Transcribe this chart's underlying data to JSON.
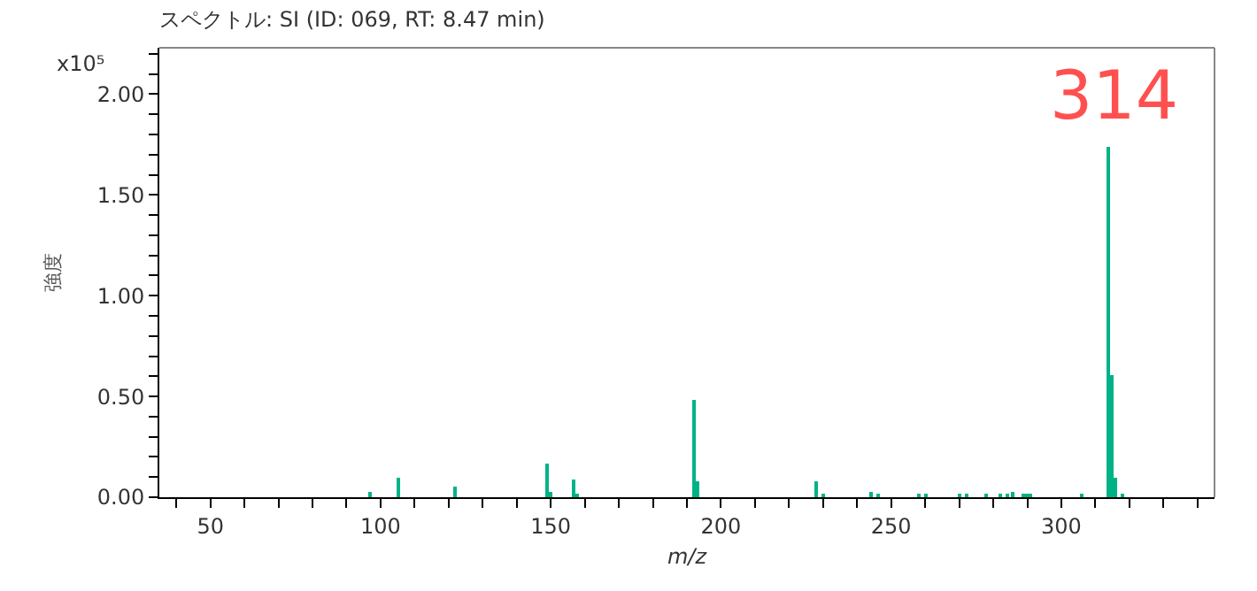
{
  "chart_data": {
    "type": "bar",
    "title": "スペクトル: SI (ID: 069, RT: 8.47 min)",
    "xlabel": "m/z",
    "ylabel": "強度",
    "annotations": [
      "x10⁵",
      "314"
    ],
    "x": [
      97,
      105,
      122,
      149,
      150,
      157,
      158,
      192,
      193,
      228,
      230,
      244,
      246,
      258,
      260,
      270,
      272,
      278,
      282,
      284,
      286,
      289,
      290,
      291,
      306,
      314,
      315,
      316,
      318
    ],
    "values": [
      0.03,
      0.1,
      0.05,
      0.17,
      0.03,
      0.09,
      0.02,
      0.48,
      0.08,
      0.08,
      0.02,
      0.03,
      0.02,
      0.02,
      0.01,
      0.01,
      0.01,
      0.01,
      0.01,
      0.01,
      0.03,
      0.01,
      0.02,
      0.01,
      0.01,
      1.74,
      0.61,
      0.1,
      0.01
    ],
    "color": "#00b386",
    "xlim": [
      35,
      345
    ],
    "ylim": [
      0,
      2.23
    ],
    "xticks": [
      {
        "value": 40,
        "label": null
      },
      50,
      {
        "value": 60,
        "label": null
      },
      {
        "value": 70,
        "label": null
      },
      {
        "value": 80,
        "label": null
      },
      {
        "value": 90,
        "label": null
      },
      100,
      {
        "value": 110,
        "label": null
      },
      {
        "value": 120,
        "label": null
      },
      {
        "value": 130,
        "label": null
      },
      {
        "value": 140,
        "label": null
      },
      150,
      {
        "value": 160,
        "label": null
      },
      {
        "value": 170,
        "label": null
      },
      {
        "value": 180,
        "label": null
      },
      {
        "value": 190,
        "label": null
      },
      200,
      {
        "value": 210,
        "label": null
      },
      {
        "value": 220,
        "label": null
      },
      {
        "value": 230,
        "label": null
      },
      {
        "value": 240,
        "label": null
      },
      250,
      {
        "value": 260,
        "label": null
      },
      {
        "value": 270,
        "label": null
      },
      {
        "value": 280,
        "label": null
      },
      {
        "value": 290,
        "label": null
      },
      300,
      {
        "value": 310,
        "label": null
      },
      {
        "value": 320,
        "label": null
      },
      {
        "value": 330,
        "label": null
      },
      {
        "value": 340,
        "label": null
      }
    ],
    "yticks": [
      {
        "value": 0,
        "label": "0.00"
      },
      {
        "value": 0.1,
        "label": null
      },
      {
        "value": 0.2,
        "label": null
      },
      {
        "value": 0.3,
        "label": null
      },
      {
        "value": 0.4,
        "label": null
      },
      {
        "value": 0.5,
        "label": "0.50"
      },
      {
        "value": 0.6,
        "label": null
      },
      {
        "value": 0.7,
        "label": null
      },
      {
        "value": 0.8,
        "label": null
      },
      {
        "value": 0.9,
        "label": null
      },
      {
        "value": 1,
        "label": "1.00"
      },
      {
        "value": 1.1,
        "label": null
      },
      {
        "value": 1.2,
        "label": null
      },
      {
        "value": 1.3,
        "label": null
      },
      {
        "value": 1.4,
        "label": null
      },
      {
        "value": 1.5,
        "label": "1.50"
      },
      {
        "value": 1.6,
        "label": null
      },
      {
        "value": 1.7,
        "label": null
      },
      {
        "value": 1.8,
        "label": null
      },
      {
        "value": 1.9,
        "label": null
      },
      {
        "value": 2,
        "label": "2.00"
      },
      {
        "value": 2.1,
        "label": null
      },
      {
        "value": 2.2,
        "label": null
      }
    ]
  }
}
